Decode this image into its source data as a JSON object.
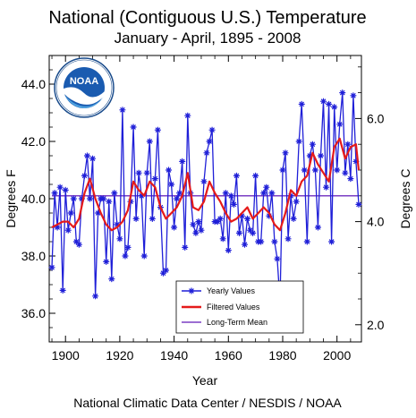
{
  "chart_data": {
    "type": "line",
    "title": "National (Contiguous U.S.) Temperature",
    "subtitle": "January - April, 1895 - 2008",
    "xlabel": "Year",
    "ylabel": "Degrees F",
    "ylabel_right": "Degrees C",
    "footer": "National Climatic Data Center / NESDIS / NOAA",
    "logo_text": "NOAA",
    "xlim": [
      1894,
      2009
    ],
    "ylim": [
      35.0,
      45.0
    ],
    "x_ticks": [
      1900,
      1920,
      1940,
      1960,
      1980,
      2000
    ],
    "y_ticks": [
      36.0,
      38.0,
      40.0,
      42.0,
      44.0
    ],
    "y_ticks_right": [
      2.0,
      4.0,
      6.0
    ],
    "legend_position": "bottom-center",
    "long_term_mean": 40.1,
    "colors": {
      "yearly": "#1f1fd8",
      "filtered": "#e51a1a",
      "mean": "#7b3fc4"
    },
    "series": [
      {
        "name": "Yearly Values",
        "x": [
          1895,
          1896,
          1897,
          1898,
          1899,
          1900,
          1901,
          1902,
          1903,
          1904,
          1905,
          1906,
          1907,
          1908,
          1909,
          1910,
          1911,
          1912,
          1913,
          1914,
          1915,
          1916,
          1917,
          1918,
          1919,
          1920,
          1921,
          1922,
          1923,
          1924,
          1925,
          1926,
          1927,
          1928,
          1929,
          1930,
          1931,
          1932,
          1933,
          1934,
          1935,
          1936,
          1937,
          1938,
          1939,
          1940,
          1941,
          1942,
          1943,
          1944,
          1945,
          1946,
          1947,
          1948,
          1949,
          1950,
          1951,
          1952,
          1953,
          1954,
          1955,
          1956,
          1957,
          1958,
          1959,
          1960,
          1961,
          1962,
          1963,
          1964,
          1965,
          1966,
          1967,
          1968,
          1969,
          1970,
          1971,
          1972,
          1973,
          1974,
          1975,
          1976,
          1977,
          1978,
          1979,
          1980,
          1981,
          1982,
          1983,
          1984,
          1985,
          1986,
          1987,
          1988,
          1989,
          1990,
          1991,
          1992,
          1993,
          1994,
          1995,
          1996,
          1997,
          1998,
          1999,
          2000,
          2001,
          2002,
          2003,
          2004,
          2005,
          2006,
          2007,
          2008
        ],
        "values": [
          37.6,
          40.2,
          39.0,
          40.4,
          36.8,
          40.3,
          38.9,
          39.5,
          40.0,
          38.5,
          38.4,
          40.0,
          40.8,
          41.5,
          40.0,
          41.4,
          36.6,
          39.5,
          40.0,
          40.0,
          37.8,
          39.9,
          37.2,
          40.2,
          39.1,
          38.6,
          43.1,
          38.0,
          38.3,
          39.9,
          42.5,
          39.3,
          40.9,
          40.1,
          38.0,
          40.9,
          42.0,
          39.3,
          40.7,
          42.4,
          39.7,
          37.4,
          37.5,
          41.0,
          40.5,
          39.0,
          40.0,
          40.2,
          41.3,
          38.3,
          42.9,
          40.2,
          39.1,
          38.8,
          39.2,
          38.9,
          40.6,
          41.6,
          42.0,
          42.4,
          39.2,
          39.2,
          39.3,
          38.6,
          40.2,
          38.2,
          40.1,
          39.8,
          40.8,
          38.8,
          39.4,
          38.4,
          39.3,
          38.9,
          38.8,
          40.8,
          38.5,
          38.5,
          40.2,
          40.4,
          39.4,
          40.2,
          38.5,
          37.9,
          36.4,
          41.0,
          41.6,
          38.6,
          40.1,
          39.3,
          39.9,
          42.0,
          43.3,
          41.0,
          38.5,
          41.5,
          41.9,
          41.0,
          39.0,
          41.5,
          43.4,
          40.4,
          43.3,
          38.5,
          43.2,
          41.0,
          42.6,
          43.7,
          40.9,
          41.9,
          40.7,
          43.6,
          41.3,
          39.8
        ]
      },
      {
        "name": "Filtered Values",
        "x": [
          1895,
          1897,
          1899,
          1901,
          1903,
          1905,
          1907,
          1909,
          1911,
          1913,
          1915,
          1917,
          1919,
          1921,
          1923,
          1925,
          1927,
          1929,
          1931,
          1933,
          1935,
          1937,
          1939,
          1941,
          1943,
          1945,
          1947,
          1949,
          1951,
          1953,
          1955,
          1957,
          1959,
          1961,
          1963,
          1965,
          1967,
          1969,
          1971,
          1973,
          1975,
          1977,
          1979,
          1981,
          1983,
          1985,
          1987,
          1989,
          1991,
          1993,
          1995,
          1997,
          1999,
          2001,
          2003,
          2005,
          2007,
          2008
        ],
        "values": [
          39.0,
          39.1,
          39.2,
          39.2,
          39.0,
          39.3,
          40.2,
          40.7,
          40.0,
          39.5,
          39.1,
          38.9,
          39.0,
          39.2,
          39.6,
          40.6,
          40.3,
          40.1,
          40.6,
          40.4,
          39.7,
          39.3,
          39.5,
          39.7,
          40.1,
          40.9,
          39.7,
          39.6,
          39.9,
          40.6,
          40.2,
          39.9,
          39.5,
          39.2,
          39.3,
          39.5,
          39.7,
          39.3,
          39.5,
          39.7,
          39.5,
          39.1,
          38.9,
          39.5,
          40.3,
          40.1,
          40.6,
          40.8,
          41.6,
          41.2,
          40.9,
          40.6,
          41.8,
          42.1,
          41.4,
          41.8,
          41.9,
          41.0
        ]
      },
      {
        "name": "Long-Term Mean",
        "x": [
          1895,
          2008
        ],
        "values": [
          40.1,
          40.1
        ]
      }
    ]
  }
}
